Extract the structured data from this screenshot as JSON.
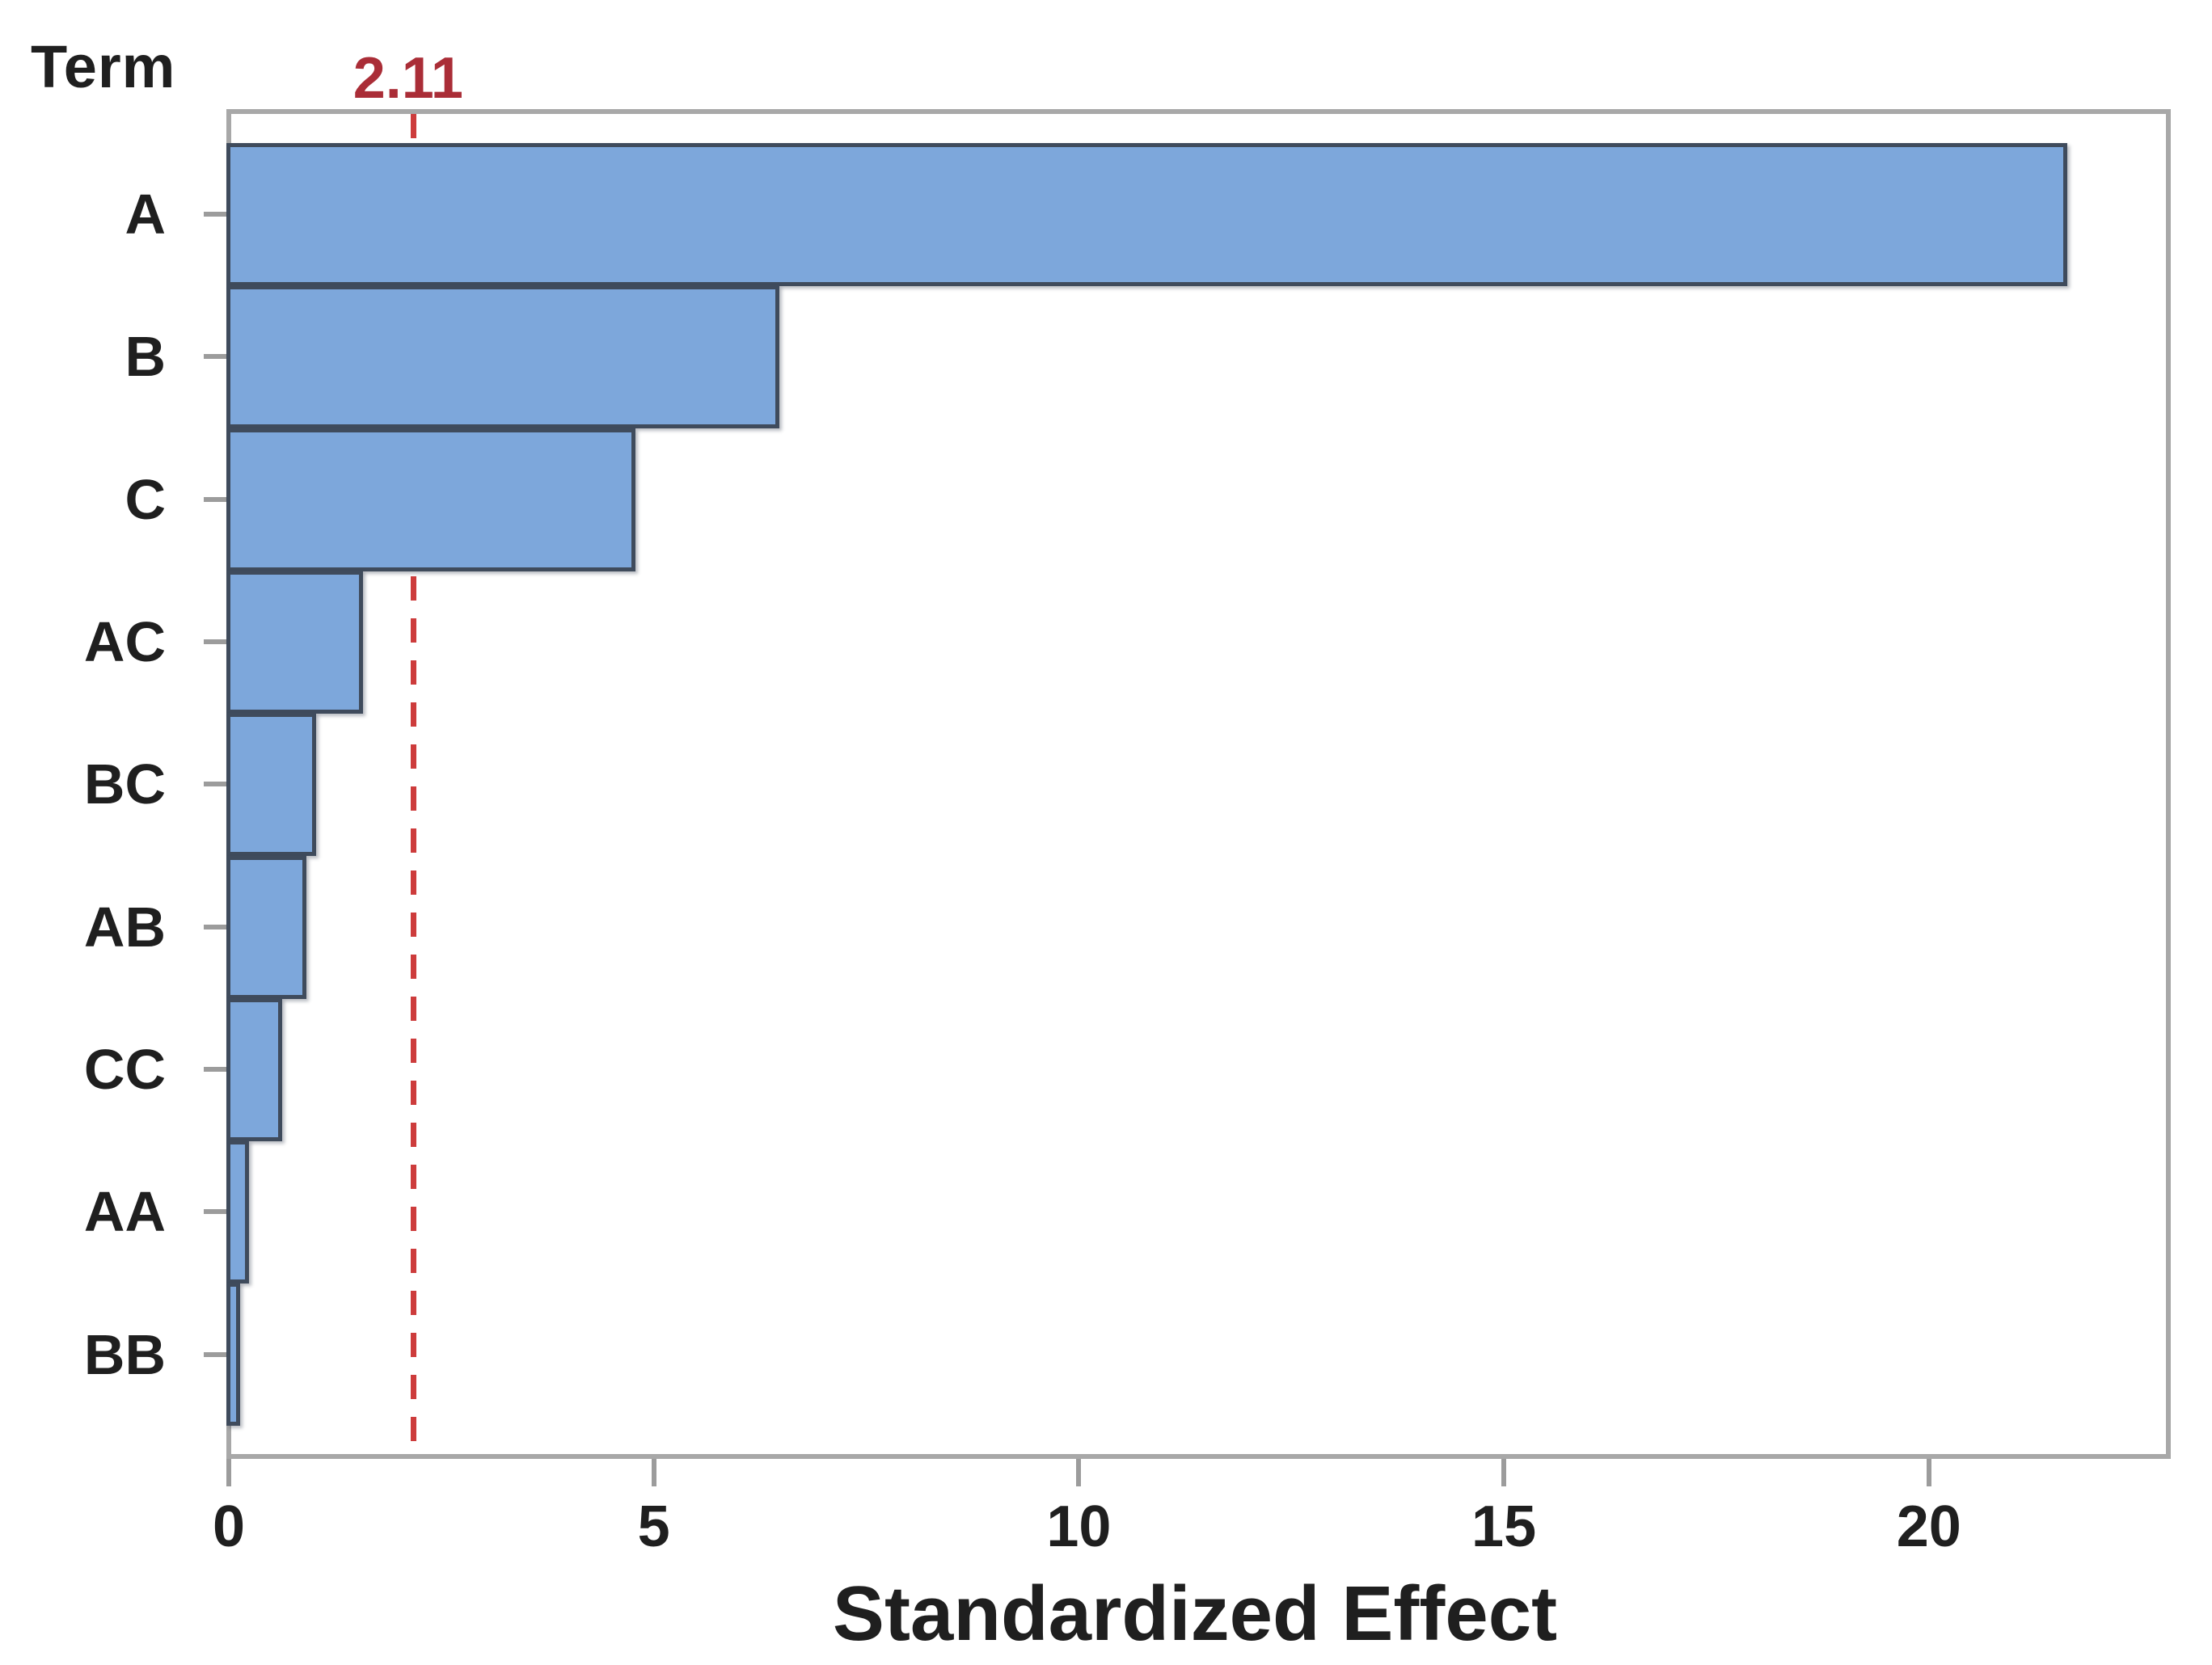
{
  "chart_data": {
    "type": "bar",
    "orientation": "horizontal",
    "title": "",
    "xlabel": "Standardized Effect",
    "ylabel": "Term",
    "categories": [
      "A",
      "B",
      "C",
      "AC",
      "BC",
      "AB",
      "CC",
      "AA",
      "BB"
    ],
    "values": [
      21.6,
      6.45,
      4.76,
      1.55,
      1.0,
      0.88,
      0.6,
      0.21,
      0.1
    ],
    "xticks": [
      0,
      5,
      10,
      15,
      20
    ],
    "xlim": [
      0,
      22.76
    ],
    "grid": false,
    "legend": false,
    "reference_line": {
      "value": 2.11,
      "label": "2.11",
      "style": "dashed"
    },
    "colors": {
      "bar_fill": "#7da7db",
      "bar_border": "#3f4b5c",
      "reference_line": "#cd3c3c",
      "reference_label": "#aa2d37",
      "frame": "#a8a8a8",
      "tick": "#9c9c9c",
      "text": "#1f1f1f"
    }
  }
}
